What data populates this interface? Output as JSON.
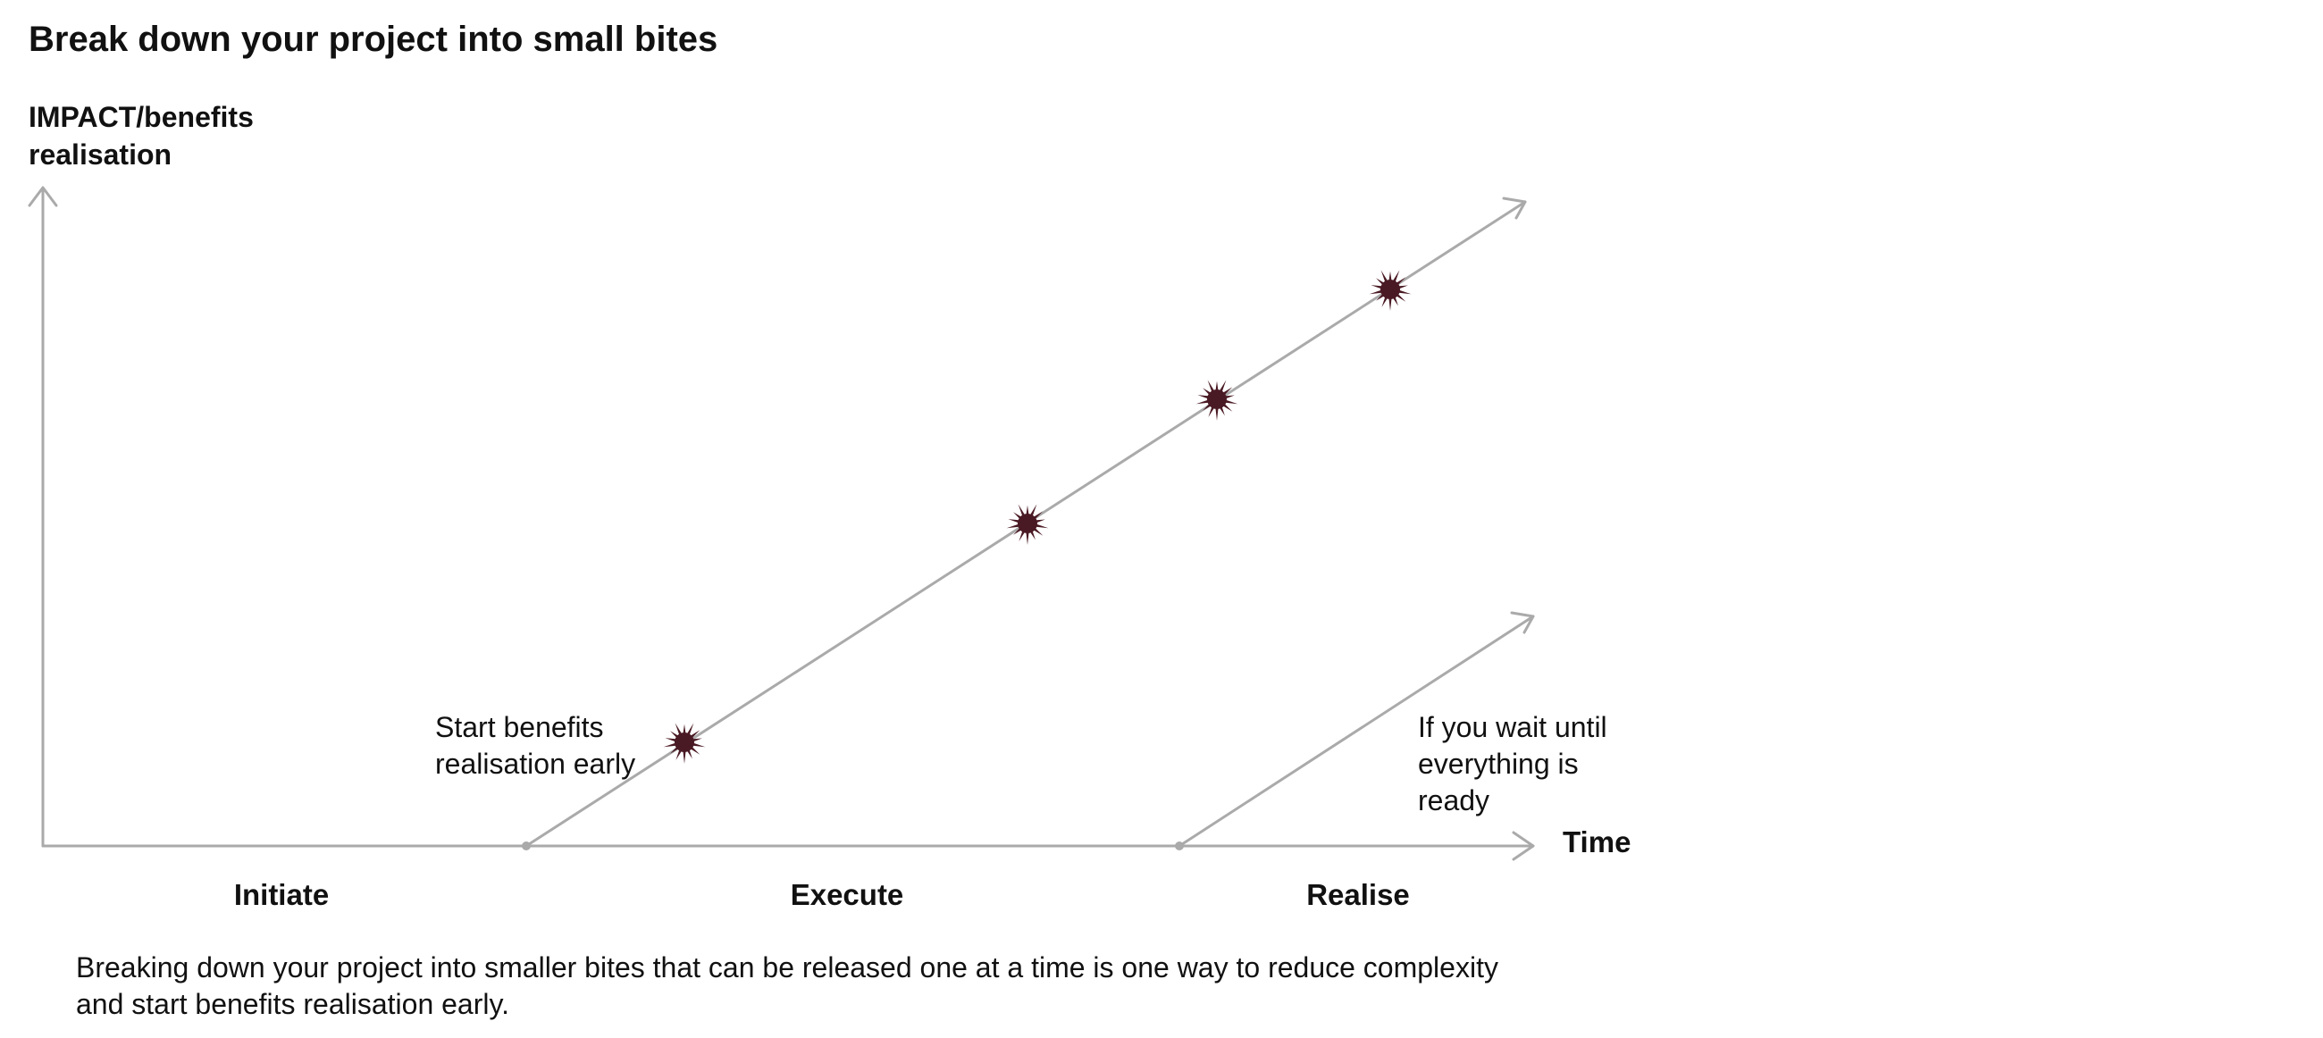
{
  "title": "Break down your project into small bites",
  "axes": {
    "y_label": "IMPACT/benefits realisation",
    "x_label": "Time"
  },
  "phases": [
    "Initiate",
    "Execute",
    "Realise"
  ],
  "annotations": {
    "early": "Start benefits realisation early",
    "wait": "If you wait until everything is ready"
  },
  "caption": "Breaking down your project into smaller bites that can be released one at a time is one way to reduce complexity and start benefits realisation early.",
  "colors": {
    "axis": "#aaaaaa",
    "burst": "#4a1a24",
    "text": "#111111"
  },
  "markers": {
    "release_bursts": 4
  }
}
